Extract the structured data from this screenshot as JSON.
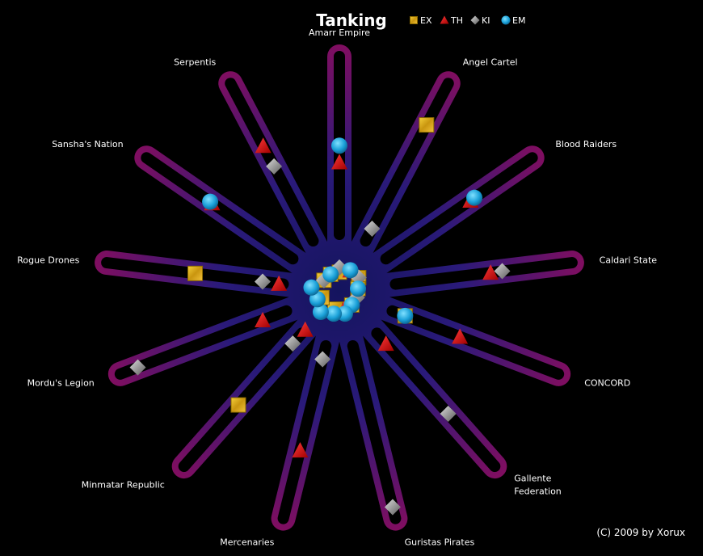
{
  "chart_data": {
    "type": "radar",
    "title": "Tanking",
    "categories": [
      "Amarr Empire",
      "Angel Cartel",
      "Blood Raiders",
      "Caldari State",
      "CONCORD",
      "Gallente Federation",
      "Guristas Pirates",
      "Mercenaries",
      "Minmatar  Republic",
      "Mordu's Legion",
      "Rogue Drones",
      "Sansha's Nation",
      "Serpentis"
    ],
    "ylim": [
      0,
      1
    ],
    "grid": false,
    "legend_placement": "top",
    "series": [
      {
        "name": "EX",
        "marker": "square",
        "color": "#e6b31e",
        "values": [
          0.08,
          0.8,
          0.1,
          0.08,
          0.3,
          0.08,
          0.08,
          0.08,
          0.65,
          0.08,
          0.62,
          0.08,
          0.08
        ]
      },
      {
        "name": "TH",
        "marker": "triangle",
        "color": "#e01010",
        "values": [
          0.55,
          0.1,
          0.68,
          0.65,
          0.55,
          0.3,
          0.08,
          0.7,
          0.22,
          0.35,
          0.26,
          0.66,
          0.7
        ]
      },
      {
        "name": "KI",
        "marker": "diamond",
        "color": "#aaaaaa",
        "values": [
          0.1,
          0.3,
          0.1,
          0.7,
          0.08,
          0.7,
          0.95,
          0.3,
          0.3,
          0.92,
          0.33,
          0.08,
          0.6
        ]
      },
      {
        "name": "EM",
        "marker": "circle",
        "color": "#1aa8dd",
        "values": [
          0.62,
          0.1,
          0.7,
          0.08,
          0.3,
          0.08,
          0.1,
          0.1,
          0.12,
          0.1,
          0.12,
          0.67,
          0.08
        ]
      }
    ]
  },
  "colors": {
    "background": "#000000",
    "spoke_inner": "#1a1a78",
    "spoke_outer": "#8a0e5a"
  },
  "copyright": "(C) 2009 by Xorux"
}
